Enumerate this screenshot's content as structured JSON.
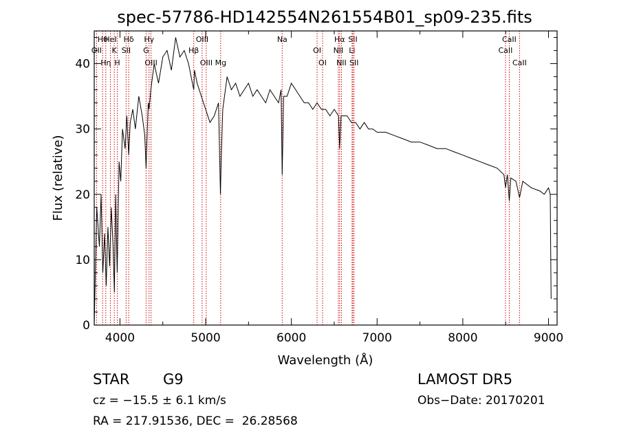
{
  "chart_data": {
    "type": "line",
    "title": "spec-57786-HD142554N261554B01_sp09-235.fits",
    "xlabel": "Wavelength (Å)",
    "ylabel": "Flux (relative)",
    "xlim": [
      3700,
      9100
    ],
    "ylim": [
      0,
      45
    ],
    "xticks": [
      4000,
      5000,
      6000,
      7000,
      8000,
      9000
    ],
    "yticks": [
      0,
      10,
      20,
      30,
      40
    ],
    "series": [
      {
        "x": [
          3700,
          3730,
          3760,
          3780,
          3800,
          3820,
          3840,
          3860,
          3880,
          3900,
          3920,
          3935,
          3950,
          3968,
          3990,
          4010,
          4030,
          4060,
          4080,
          4102,
          4120,
          4150,
          4180,
          4220,
          4260,
          4290,
          4305,
          4330,
          4340,
          4360,
          4400,
          4450,
          4500,
          4550,
          4600,
          4650,
          4700,
          4750,
          4800,
          4861,
          4870,
          4900,
          4950,
          5000,
          5050,
          5100,
          5150,
          5172,
          5183,
          5200,
          5250,
          5300,
          5350,
          5400,
          5450,
          5500,
          5550,
          5600,
          5650,
          5700,
          5750,
          5800,
          5850,
          5880,
          5893,
          5910,
          5950,
          6000,
          6050,
          6100,
          6150,
          6200,
          6250,
          6300,
          6350,
          6400,
          6450,
          6500,
          6550,
          6563,
          6580,
          6600,
          6650,
          6700,
          6750,
          6800,
          6850,
          6900,
          6950,
          7000,
          7100,
          7200,
          7300,
          7400,
          7500,
          7600,
          7700,
          7800,
          7900,
          8000,
          8100,
          8200,
          8300,
          8400,
          8480,
          8498,
          8520,
          8542,
          8560,
          8620,
          8662,
          8700,
          8800,
          8900,
          8950,
          9000,
          9020,
          9030
        ],
        "y": [
          0,
          18,
          12,
          20,
          8,
          14,
          6,
          15,
          9,
          18,
          12,
          5,
          20,
          8,
          25,
          22,
          30,
          27,
          32,
          26,
          31,
          33,
          30,
          35,
          32,
          29,
          24,
          34,
          33,
          36,
          40,
          37,
          41,
          42,
          39,
          44,
          41,
          42,
          40,
          36,
          39,
          37,
          35,
          33,
          31,
          32,
          34,
          20,
          26,
          33,
          38,
          36,
          37,
          35,
          36,
          37,
          35,
          36,
          35,
          34,
          36,
          35,
          34,
          36,
          23,
          35,
          35,
          37,
          36,
          35,
          34,
          34,
          33,
          34,
          33,
          33,
          32,
          33,
          32,
          27,
          32,
          32,
          32,
          31,
          31,
          30,
          31,
          30,
          30,
          29.5,
          29.5,
          29,
          28.5,
          28,
          28,
          27.5,
          27,
          27,
          26.5,
          26,
          25.5,
          25,
          24.5,
          24,
          23,
          21,
          23,
          19,
          22.5,
          22,
          19.5,
          22,
          21,
          20.5,
          20,
          21,
          20,
          4
        ]
      }
    ],
    "lines": [
      {
        "name": "Hθ",
        "wl": 3798
      },
      {
        "name": "OII",
        "wl": 3727
      },
      {
        "name": "Hη",
        "wl": 3835
      },
      {
        "name": "HeI",
        "wl": 3889
      },
      {
        "name": "K",
        "wl": 3934
      },
      {
        "name": "H",
        "wl": 3969
      },
      {
        "name": "Hδ",
        "wl": 4102
      },
      {
        "name": "SII",
        "wl": 4072
      },
      {
        "name": "OIII",
        "wl": 4363
      },
      {
        "name": "Hγ",
        "wl": 4340
      },
      {
        "name": "G",
        "wl": 4305
      },
      {
        "name": "OIII",
        "wl": 5007
      },
      {
        "name": "OIII",
        "wl": 4959
      },
      {
        "name": "Hβ",
        "wl": 4861
      },
      {
        "name": "Mg",
        "wl": 5175
      },
      {
        "name": "Na",
        "wl": 5893
      },
      {
        "name": "OI",
        "wl": 6300
      },
      {
        "name": "OI",
        "wl": 6364
      },
      {
        "name": "Hα",
        "wl": 6563
      },
      {
        "name": "NII",
        "wl": 6548
      },
      {
        "name": "NII",
        "wl": 6584
      },
      {
        "name": "SII",
        "wl": 6717
      },
      {
        "name": "Li",
        "wl": 6708
      },
      {
        "name": "SII",
        "wl": 6731
      },
      {
        "name": "CaII",
        "wl": 8542
      },
      {
        "name": "CaII",
        "wl": 8498
      },
      {
        "name": "CaII",
        "wl": 8662
      }
    ]
  },
  "info": {
    "class_label": "STAR",
    "subclass": "G9",
    "survey": "LAMOST DR5",
    "cz": "cz = −15.5 ± 6.1 km/s",
    "obs_date": "Obs−Date: 20170201",
    "coords": "RA = 217.91536, DEC =  26.28568"
  },
  "colors": {
    "spectrum": "#000000",
    "line_markers": "#cc0000"
  }
}
